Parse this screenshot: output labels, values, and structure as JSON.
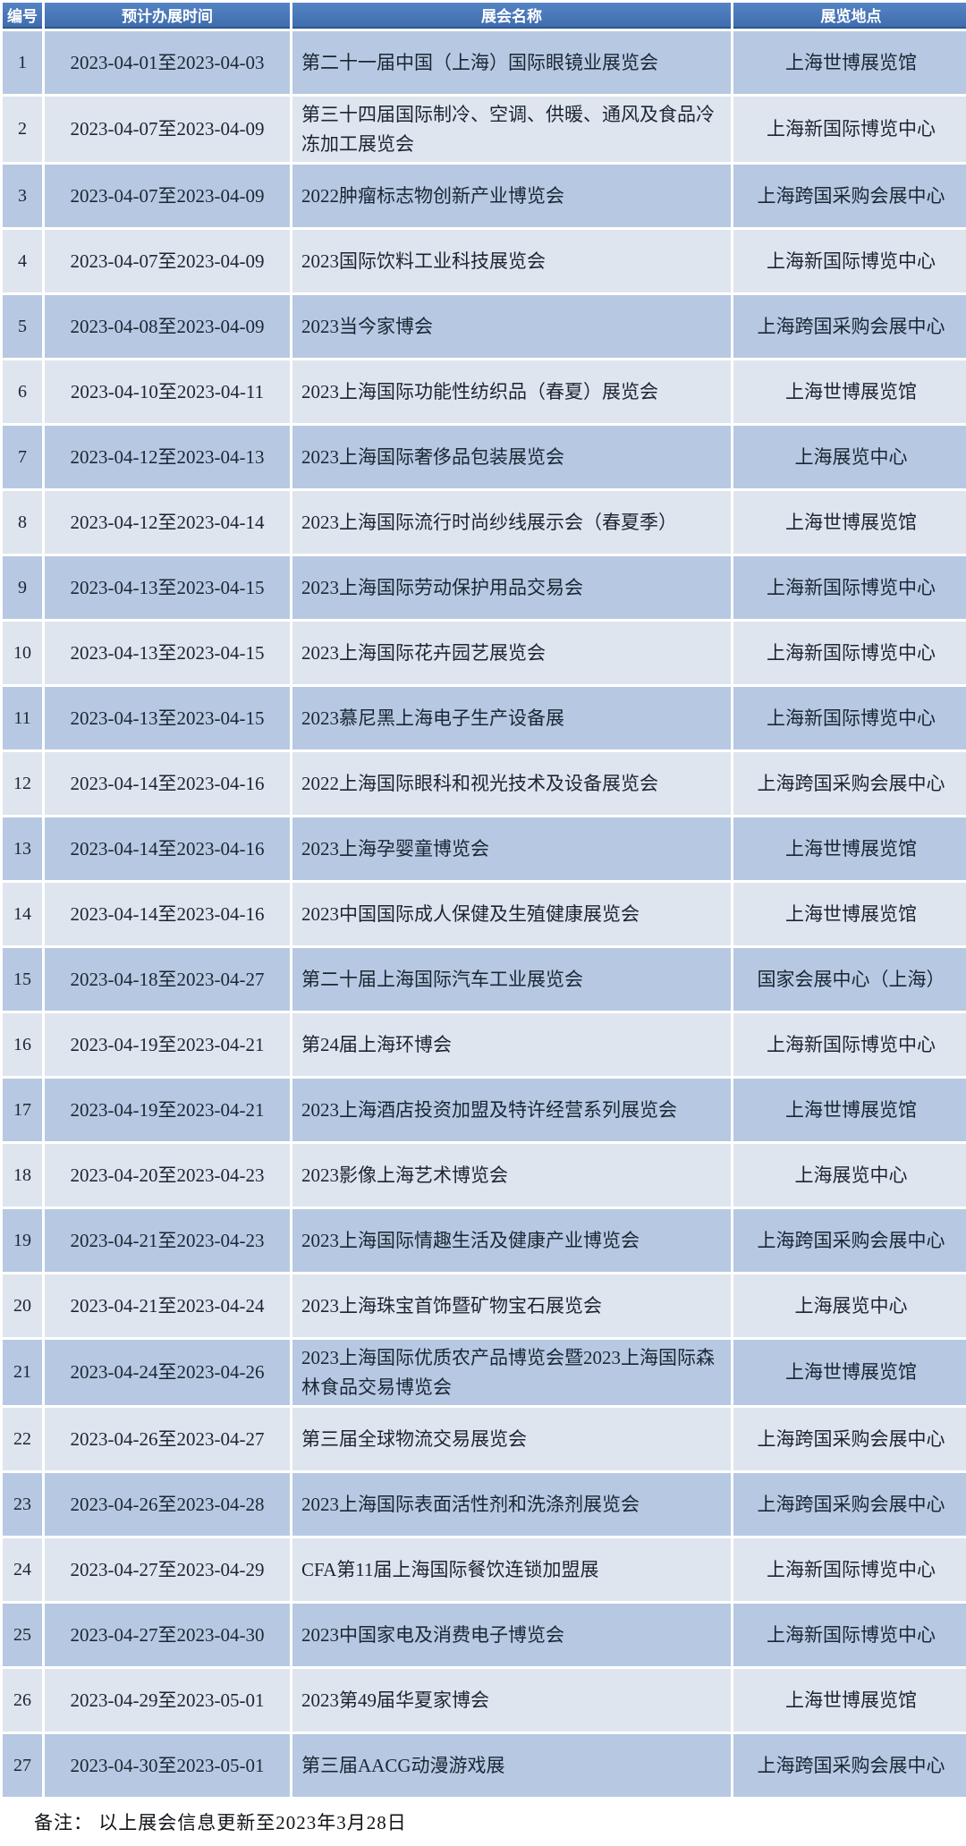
{
  "chart_data": {
    "type": "table",
    "title": "",
    "columns": [
      "编号",
      "预计办展时间",
      "展会名称",
      "展览地点"
    ],
    "rows": [
      [
        "1",
        "2023-04-01至2023-04-03",
        "第二十一届中国（上海）国际眼镜业展览会",
        "上海世博展览馆"
      ],
      [
        "2",
        "2023-04-07至2023-04-09",
        "第三十四届国际制冷、空调、供暖、通风及食品冷冻加工展览会",
        "上海新国际博览中心"
      ],
      [
        "3",
        "2023-04-07至2023-04-09",
        "2022肿瘤标志物创新产业博览会",
        "上海跨国采购会展中心"
      ],
      [
        "4",
        "2023-04-07至2023-04-09",
        "2023国际饮料工业科技展览会",
        "上海新国际博览中心"
      ],
      [
        "5",
        "2023-04-08至2023-04-09",
        "2023当今家博会",
        "上海跨国采购会展中心"
      ],
      [
        "6",
        "2023-04-10至2023-04-11",
        "2023上海国际功能性纺织品（春夏）展览会",
        "上海世博展览馆"
      ],
      [
        "7",
        "2023-04-12至2023-04-13",
        "2023上海国际奢侈品包装展览会",
        "上海展览中心"
      ],
      [
        "8",
        "2023-04-12至2023-04-14",
        "2023上海国际流行时尚纱线展示会（春夏季）",
        "上海世博展览馆"
      ],
      [
        "9",
        "2023-04-13至2023-04-15",
        "2023上海国际劳动保护用品交易会",
        "上海新国际博览中心"
      ],
      [
        "10",
        "2023-04-13至2023-04-15",
        "2023上海国际花卉园艺展览会",
        "上海新国际博览中心"
      ],
      [
        "11",
        "2023-04-13至2023-04-15",
        "2023慕尼黑上海电子生产设备展",
        "上海新国际博览中心"
      ],
      [
        "12",
        "2023-04-14至2023-04-16",
        "2022上海国际眼科和视光技术及设备展览会",
        "上海跨国采购会展中心"
      ],
      [
        "13",
        "2023-04-14至2023-04-16",
        "2023上海孕婴童博览会",
        "上海世博展览馆"
      ],
      [
        "14",
        "2023-04-14至2023-04-16",
        "2023中国国际成人保健及生殖健康展览会",
        "上海世博展览馆"
      ],
      [
        "15",
        "2023-04-18至2023-04-27",
        "第二十届上海国际汽车工业展览会",
        "国家会展中心（上海）"
      ],
      [
        "16",
        "2023-04-19至2023-04-21",
        "第24届上海环博会",
        "上海新国际博览中心"
      ],
      [
        "17",
        "2023-04-19至2023-04-21",
        "2023上海酒店投资加盟及特许经营系列展览会",
        "上海世博展览馆"
      ],
      [
        "18",
        "2023-04-20至2023-04-23",
        "2023影像上海艺术博览会",
        "上海展览中心"
      ],
      [
        "19",
        "2023-04-21至2023-04-23",
        "2023上海国际情趣生活及健康产业博览会",
        "上海跨国采购会展中心"
      ],
      [
        "20",
        "2023-04-21至2023-04-24",
        "2023上海珠宝首饰暨矿物宝石展览会",
        "上海展览中心"
      ],
      [
        "21",
        "2023-04-24至2023-04-26",
        "2023上海国际优质农产品博览会暨2023上海国际森林食品交易博览会",
        "上海世博展览馆"
      ],
      [
        "22",
        "2023-04-26至2023-04-27",
        "第三届全球物流交易展览会",
        "上海跨国采购会展中心"
      ],
      [
        "23",
        "2023-04-26至2023-04-28",
        "2023上海国际表面活性剂和洗涤剂展览会",
        "上海跨国采购会展中心"
      ],
      [
        "24",
        "2023-04-27至2023-04-29",
        "CFA第11届上海国际餐饮连锁加盟展",
        "上海新国际博览中心"
      ],
      [
        "25",
        "2023-04-27至2023-04-30",
        "2023中国家电及消费电子博览会",
        "上海新国际博览中心"
      ],
      [
        "26",
        "2023-04-29至2023-05-01",
        "2023第49届华夏家博会",
        "上海世博展览馆"
      ],
      [
        "27",
        "2023-04-30至2023-05-01",
        "第三届AACG动漫游戏展",
        "上海跨国采购会展中心"
      ]
    ],
    "note": "备注： 以上展会信息更新至2023年3月28日"
  },
  "colors": {
    "header_bg": "#4677b6",
    "header_text": "#ffffff",
    "row_odd_bg": "#b7c9e2",
    "row_even_bg": "#dfe5ee",
    "cell_border": "#ffffff",
    "cell_text": "#1b2634"
  }
}
